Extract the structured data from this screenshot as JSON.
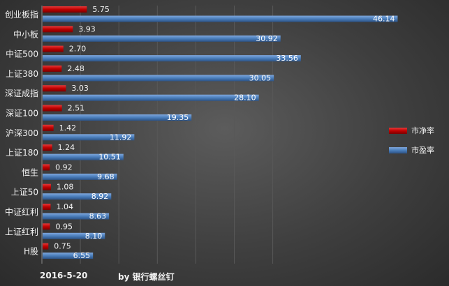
{
  "footer": {
    "date": "2016-5-20",
    "credit": "by 银行螺丝钉"
  },
  "chart_data": {
    "type": "bar",
    "orientation": "horizontal",
    "categories": [
      "创业板指",
      "中小板",
      "中证500",
      "上证380",
      "深证成指",
      "深证100",
      "沪深300",
      "上证180",
      "恒生",
      "上证50",
      "中证红利",
      "上证红利",
      "H股"
    ],
    "series": [
      {
        "name": "市净率",
        "color": "#c00000",
        "values": [
          5.75,
          3.93,
          2.7,
          2.48,
          3.03,
          2.51,
          1.42,
          1.24,
          0.92,
          1.08,
          1.04,
          0.95,
          0.75
        ]
      },
      {
        "name": "市盈率",
        "color": "#4a7ebb",
        "values": [
          46.14,
          30.92,
          33.56,
          30.05,
          28.1,
          19.35,
          11.92,
          10.51,
          9.68,
          8.92,
          8.63,
          8.1,
          6.55
        ]
      }
    ],
    "xlim": [
      0,
      50
    ],
    "grid": true,
    "legend_position": "right"
  }
}
